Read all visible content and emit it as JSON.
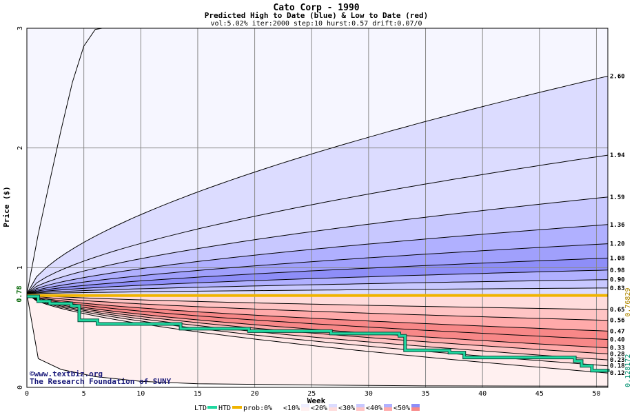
{
  "chart_data": {
    "type": "area",
    "title": "Cato Corp - 1990",
    "subtitle": "Predicted High to Date (blue) &  Low to Date (red)",
    "params": "vol:5.02% iter:2000 step:10 hurst:0.57 drift:0.07/0",
    "xlabel": "Week",
    "ylabel": "Price ($)",
    "xlim": [
      0,
      51
    ],
    "ylim": [
      0,
      3
    ],
    "x_ticks": [
      0,
      5,
      10,
      15,
      20,
      25,
      30,
      35,
      40,
      45,
      50
    ],
    "y_ticks": [
      0,
      1,
      2,
      3
    ],
    "grid": true,
    "start_price": 0.78,
    "start_label": "0.78",
    "current_high": 0.76829,
    "current_high_label": "0.76829",
    "current_low": 0.128172,
    "current_low_label": "0.128172",
    "high_quantile_end_labels": [
      "2.60",
      "1.94",
      "1.59",
      "1.36",
      "1.20",
      "1.08",
      "0.98",
      "0.90",
      "0.83"
    ],
    "low_quantile_end_labels": [
      "0.65",
      "0.56",
      "0.47",
      "0.40",
      "0.33",
      "0.28",
      "0.23",
      "0.18",
      "0.12"
    ],
    "high_max_curve": [
      [
        0,
        0.78
      ],
      [
        1,
        1.28
      ],
      [
        2,
        1.72
      ],
      [
        3,
        2.15
      ],
      [
        4,
        2.55
      ],
      [
        5,
        2.85
      ],
      [
        6,
        2.99
      ],
      [
        6.6,
        3.0
      ],
      [
        7,
        3.0
      ]
    ],
    "low_min_curve": [
      [
        0,
        0.78
      ],
      [
        1,
        0.24
      ],
      [
        3,
        0.15
      ],
      [
        6,
        0.09
      ],
      [
        10,
        0.05
      ],
      [
        15,
        0.03
      ],
      [
        25,
        0.02
      ],
      [
        35,
        0.012
      ],
      [
        51,
        0.01
      ]
    ],
    "bands": [
      {
        "legend": "<10%",
        "color": "#eeeeff"
      },
      {
        "legend": "<20%",
        "color": "#dcdcff"
      },
      {
        "legend": "<30%",
        "color": "#c8c8ff"
      },
      {
        "legend": "<40%",
        "color": "#b0b0ff"
      },
      {
        "legend": "<50%",
        "color": "#8e8ef8"
      }
    ],
    "low_bands": [
      {
        "legend": "<10%",
        "color": "#fff0f0"
      },
      {
        "legend": "<20%",
        "color": "#ffdcdc"
      },
      {
        "legend": "<30%",
        "color": "#ffc4c4"
      },
      {
        "legend": "<40%",
        "color": "#ffaaaa"
      },
      {
        "legend": "<50%",
        "color": "#f88888"
      }
    ],
    "htd_series": [
      [
        0,
        0.767
      ],
      [
        51,
        0.768
      ]
    ],
    "ltd_series": [
      [
        0,
        0.76
      ],
      [
        1,
        0.72
      ],
      [
        2,
        0.7
      ],
      [
        3.9,
        0.68
      ],
      [
        4.6,
        0.56
      ],
      [
        6.2,
        0.53
      ],
      [
        13.5,
        0.49
      ],
      [
        19.5,
        0.47
      ],
      [
        26.7,
        0.45
      ],
      [
        32.7,
        0.43
      ],
      [
        33.2,
        0.31
      ],
      [
        37.1,
        0.29
      ],
      [
        38.4,
        0.25
      ],
      [
        48.1,
        0.22
      ],
      [
        48.7,
        0.18
      ],
      [
        49.6,
        0.14
      ],
      [
        51,
        0.128
      ]
    ],
    "legend": {
      "ltd": "LTD",
      "htd": "HTD",
      "prob": "prob:",
      "items": [
        "0%",
        "<10%",
        "<20%",
        "<30%",
        "<40%",
        "<50%"
      ]
    },
    "colors": {
      "ltd": "#20d8a0",
      "htd": "#f0b400",
      "grid": "#888888",
      "start_label": "#006400",
      "high_label": "#b08800",
      "low_label": "#009070"
    }
  },
  "watermark": {
    "line1": "©www.textbiz.org",
    "line2": "The Research Foundation of SUNY"
  }
}
